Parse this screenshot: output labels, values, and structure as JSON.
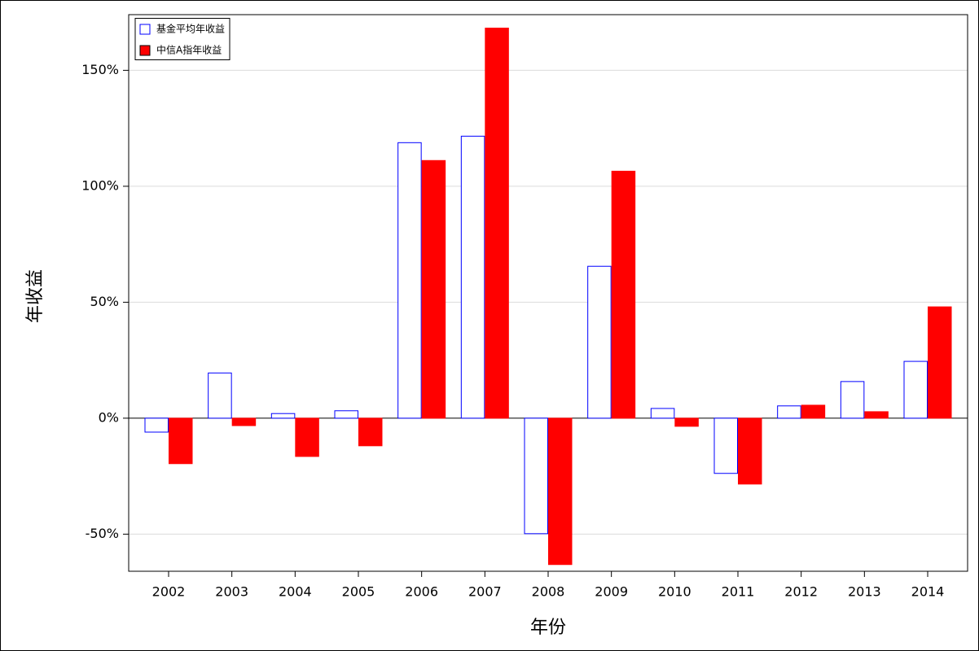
{
  "chart_data": {
    "type": "bar",
    "xlabel": "年份",
    "ylabel": "年收益",
    "categories": [
      "2002",
      "2003",
      "2004",
      "2005",
      "2006",
      "2007",
      "2008",
      "2009",
      "2010",
      "2011",
      "2012",
      "2013",
      "2014"
    ],
    "series": [
      {
        "name": "基金平均年收益",
        "color": "#0000ff",
        "filled": false,
        "values": [
          -6,
          19.5,
          2,
          3.2,
          118.8,
          121.6,
          -49.8,
          65.5,
          4.2,
          -23.8,
          5.3,
          15.8,
          24.5
        ]
      },
      {
        "name": "中信A指年收益",
        "color": "#ff0000",
        "filled": true,
        "values": [
          -19.6,
          -3.2,
          -16.5,
          -11.9,
          111.1,
          168.2,
          -63.1,
          106.5,
          -3.5,
          -28.4,
          5.6,
          2.8,
          48
        ]
      }
    ],
    "ylim": [
      -66,
      174
    ],
    "yticks": [
      {
        "value": -50,
        "label": "-50%"
      },
      {
        "value": 0,
        "label": "0%"
      },
      {
        "value": 50,
        "label": "50%"
      },
      {
        "value": 100,
        "label": "100%"
      },
      {
        "value": 150,
        "label": "150%"
      }
    ],
    "grid": true,
    "legend": "top-left"
  }
}
